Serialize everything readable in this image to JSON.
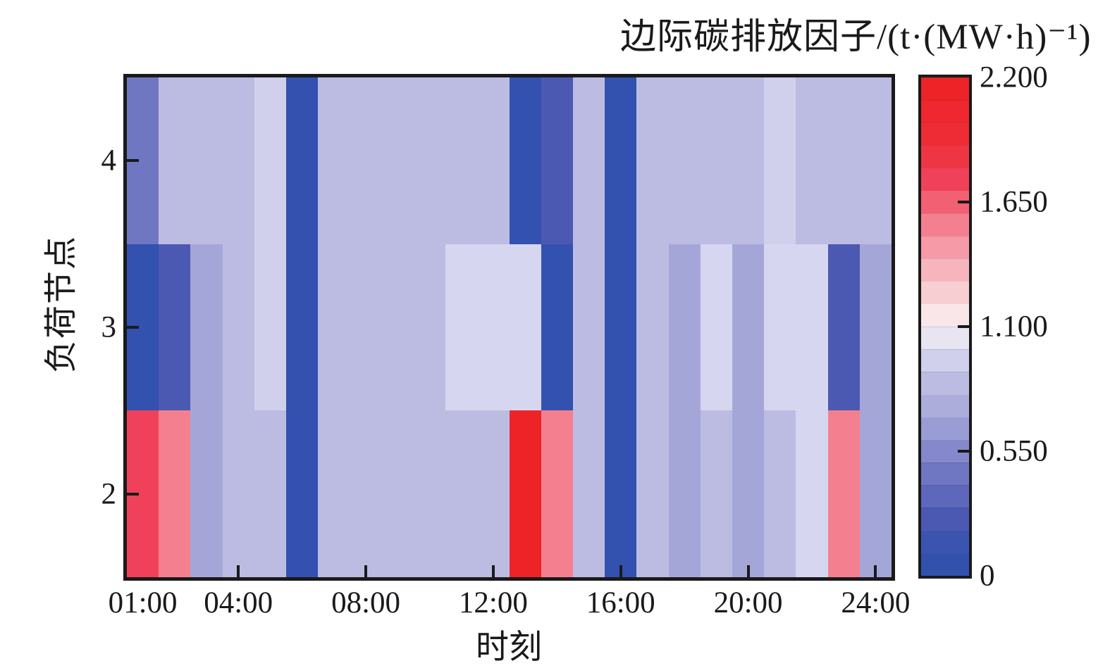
{
  "chart_data": {
    "type": "heatmap",
    "title": "边际碳排放因子/(t·(MW·h)⁻¹)",
    "xlabel": "时刻",
    "ylabel": "负荷节点",
    "x_ticks": [
      {
        "label": "01:00",
        "hour": 1,
        "notch": false
      },
      {
        "label": "04:00",
        "hour": 4,
        "notch": true
      },
      {
        "label": "08:00",
        "hour": 8,
        "notch": true
      },
      {
        "label": "12:00",
        "hour": 12,
        "notch": true
      },
      {
        "label": "16:00",
        "hour": 16,
        "notch": true
      },
      {
        "label": "20:00",
        "hour": 20,
        "notch": true
      },
      {
        "label": "24:00",
        "hour": 24,
        "notch": true
      }
    ],
    "y_ticks": [
      {
        "label": "4",
        "value": 4
      },
      {
        "label": "3",
        "value": 3
      },
      {
        "label": "2",
        "value": 2
      }
    ],
    "y_range": [
      1.5,
      4.5
    ],
    "hours": [
      1,
      2,
      3,
      4,
      5,
      6,
      7,
      8,
      9,
      10,
      11,
      12,
      13,
      14,
      15,
      16,
      17,
      18,
      19,
      20,
      21,
      22,
      23,
      24
    ],
    "rows_top_to_bottom": [
      "4",
      "3",
      "2"
    ],
    "series": [
      {
        "name": "node-4",
        "values": [
          0.45,
          0.85,
          0.85,
          0.85,
          0.95,
          0.1,
          0.85,
          0.85,
          0.85,
          0.85,
          0.85,
          0.85,
          0.1,
          0.25,
          0.85,
          0.1,
          0.85,
          0.85,
          0.85,
          0.85,
          0.95,
          0.85,
          0.85,
          0.85
        ]
      },
      {
        "name": "node-3",
        "values": [
          0.1,
          0.25,
          0.7,
          0.85,
          0.95,
          0.1,
          0.85,
          0.85,
          0.85,
          0.85,
          1.0,
          1.0,
          1.0,
          0.1,
          0.85,
          0.1,
          0.85,
          0.7,
          1.0,
          0.7,
          1.0,
          1.0,
          0.25,
          0.7
        ]
      },
      {
        "name": "node-2",
        "values": [
          1.75,
          1.55,
          0.7,
          0.85,
          0.85,
          0.1,
          0.85,
          0.85,
          0.85,
          0.85,
          0.85,
          0.85,
          2.15,
          1.55,
          0.85,
          0.1,
          0.85,
          0.7,
          0.85,
          0.7,
          0.85,
          1.0,
          1.55,
          0.7
        ]
      }
    ],
    "colorbar": {
      "min": 0,
      "max": 2.2,
      "segment_step": 0.1,
      "ticks": [
        {
          "label": "2.200",
          "value": 2.2,
          "notch": false
        },
        {
          "label": "1.650",
          "value": 1.65,
          "notch": true
        },
        {
          "label": "1.100",
          "value": 1.1,
          "notch": true
        },
        {
          "label": "0.550",
          "value": 0.55,
          "notch": true
        },
        {
          "label": "0",
          "value": 0,
          "notch": false
        }
      ]
    },
    "colormap_stops": [
      [
        0.0,
        "#3050ac"
      ],
      [
        0.1,
        "#3351ae"
      ],
      [
        0.25,
        "#4c59b2"
      ],
      [
        0.45,
        "#6f76c2"
      ],
      [
        0.7,
        "#a5a6d8"
      ],
      [
        0.85,
        "#bcbce2"
      ],
      [
        0.95,
        "#d0d0ec"
      ],
      [
        1.0,
        "#d6d6f1"
      ],
      [
        1.1,
        "#f9f2f2"
      ],
      [
        1.3,
        "#f6c2c8"
      ],
      [
        1.55,
        "#f4808f"
      ],
      [
        1.75,
        "#ef4159"
      ],
      [
        1.9,
        "#ee2f38"
      ],
      [
        2.2,
        "#ee2024"
      ]
    ],
    "grid_line_color": "rgba(255,255,255,0.35)",
    "frame_color": "#1a1a1a",
    "background_color": "#ffffff"
  }
}
